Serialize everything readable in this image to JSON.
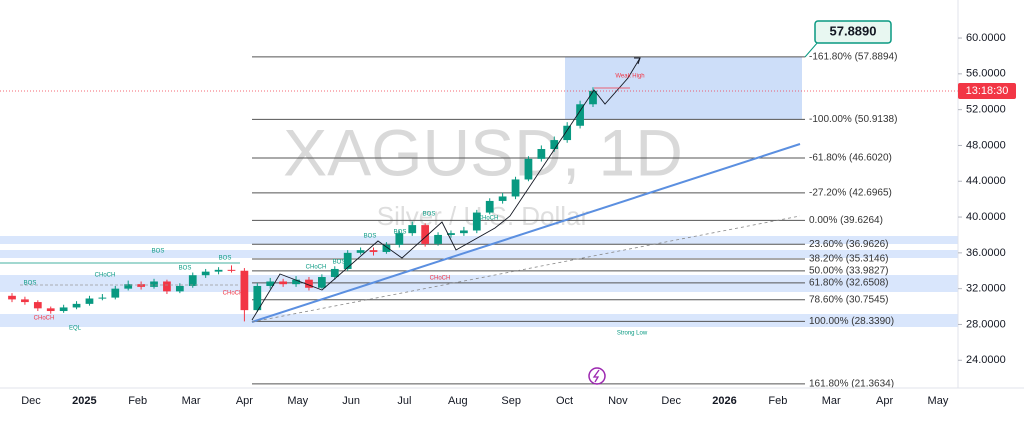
{
  "chart_data": {
    "type": "candlestick",
    "title": "XAGUSD, 1D",
    "subtitle": "Silver / U.S. Dollar",
    "ylim": [
      20.9,
      64.25
    ],
    "yticks": [
      {
        "value": 24,
        "label": "24.0000"
      },
      {
        "value": 28,
        "label": "28.0000"
      },
      {
        "value": 32,
        "label": "32.0000"
      },
      {
        "value": 36,
        "label": "36.0000"
      },
      {
        "value": 40,
        "label": "40.0000"
      },
      {
        "value": 44,
        "label": "44.0000"
      },
      {
        "value": 48,
        "label": "48.0000"
      },
      {
        "value": 52,
        "label": "52.0000"
      },
      {
        "value": 56,
        "label": "56.0000"
      },
      {
        "value": 60,
        "label": "60.0000"
      }
    ],
    "categories": [
      "Dec",
      "2025",
      "Feb",
      "Mar",
      "Apr",
      "May",
      "Jun",
      "Jul",
      "Aug",
      "Sep",
      "Oct",
      "Nov",
      "Dec",
      "2026",
      "Feb",
      "Mar",
      "Apr",
      "May"
    ],
    "up_color": "#089981",
    "down_color": "#f23645",
    "open": [
      31.2,
      30.8,
      30.5,
      29.8,
      29.5,
      29.9,
      30.3,
      30.9,
      31.0,
      32.0,
      32.5,
      32.2,
      32.8,
      31.7,
      32.3,
      33.5,
      33.9,
      34.1,
      34.0,
      29.6,
      32.3,
      32.8,
      32.5,
      33.0,
      32.1,
      33.3,
      34.2,
      36.0,
      36.3,
      36.1,
      36.9,
      38.2,
      39.1,
      37.0,
      38.0,
      38.2,
      38.5,
      40.5,
      41.8,
      42.3,
      44.2,
      46.5,
      47.6,
      48.6,
      50.2,
      52.6
    ],
    "high": [
      31.5,
      31.1,
      30.7,
      30.0,
      30.2,
      30.6,
      31.2,
      31.4,
      32.3,
      32.9,
      32.8,
      33.1,
      33.0,
      32.6,
      33.8,
      34.2,
      34.4,
      34.6,
      34.3,
      32.6,
      33.2,
      33.1,
      33.4,
      33.3,
      33.6,
      34.5,
      36.3,
      36.6,
      36.6,
      37.2,
      38.5,
      39.5,
      39.3,
      38.3,
      38.5,
      38.9,
      40.8,
      42.1,
      42.7,
      44.5,
      46.8,
      48.0,
      49.0,
      50.6,
      53.0,
      54.5
    ],
    "low": [
      30.5,
      30.2,
      29.5,
      29.2,
      29.3,
      29.7,
      30.1,
      30.7,
      30.8,
      31.8,
      31.9,
      32.0,
      31.4,
      31.5,
      32.1,
      33.2,
      33.6,
      33.8,
      28.34,
      29.4,
      32.0,
      32.2,
      32.2,
      31.8,
      32.0,
      33.0,
      34.0,
      35.8,
      35.7,
      35.9,
      36.6,
      37.9,
      36.7,
      36.8,
      37.7,
      37.9,
      38.2,
      40.3,
      41.5,
      42.0,
      44.0,
      46.2,
      47.3,
      48.3,
      49.9,
      52.3
    ],
    "close": [
      30.8,
      30.5,
      29.8,
      29.5,
      29.9,
      30.3,
      30.9,
      31.0,
      32.0,
      32.5,
      32.2,
      32.8,
      31.7,
      32.3,
      33.5,
      33.9,
      34.1,
      34.0,
      29.6,
      32.3,
      32.8,
      32.5,
      33.0,
      32.1,
      33.3,
      34.2,
      36.0,
      36.3,
      36.1,
      36.9,
      38.2,
      39.1,
      37.0,
      38.0,
      38.2,
      38.5,
      40.5,
      41.8,
      42.3,
      44.2,
      46.5,
      47.6,
      48.6,
      50.2,
      52.6,
      54.1
    ],
    "fib_levels": [
      {
        "label": "-161.80% (57.8894)",
        "price": 57.8894
      },
      {
        "label": "-100.00% (50.9138)",
        "price": 50.9138
      },
      {
        "label": "-61.80% (46.6020)",
        "price": 46.602
      },
      {
        "label": "-27.20% (42.6965)",
        "price": 42.6965
      },
      {
        "label": "0.00% (39.6264)",
        "price": 39.6264
      },
      {
        "label": "23.60% (36.9626)",
        "price": 36.9626
      },
      {
        "label": "38.20% (35.3146)",
        "price": 35.3146
      },
      {
        "label": "50.00% (33.9827)",
        "price": 33.9827
      },
      {
        "label": "61.80% (32.6508)",
        "price": 32.6508
      },
      {
        "label": "78.60% (30.7545)",
        "price": 30.7545
      },
      {
        "label": "100.00% (28.3390)",
        "price": 28.339
      },
      {
        "label": "161.80% (21.3634)",
        "price": 21.3634
      }
    ],
    "target_label": "57.8890",
    "countdown": "13:18:30",
    "annotations": [
      "BOS",
      "BOS",
      "CHoCH",
      "CHoCH",
      "EQL",
      "BOS",
      "BOS",
      "CHoCH",
      "BOS",
      "CHoCH",
      "BOS",
      "BOS",
      "BOS",
      "CHoCH",
      "CHoCH",
      "Strong Low",
      "Weak High"
    ]
  }
}
